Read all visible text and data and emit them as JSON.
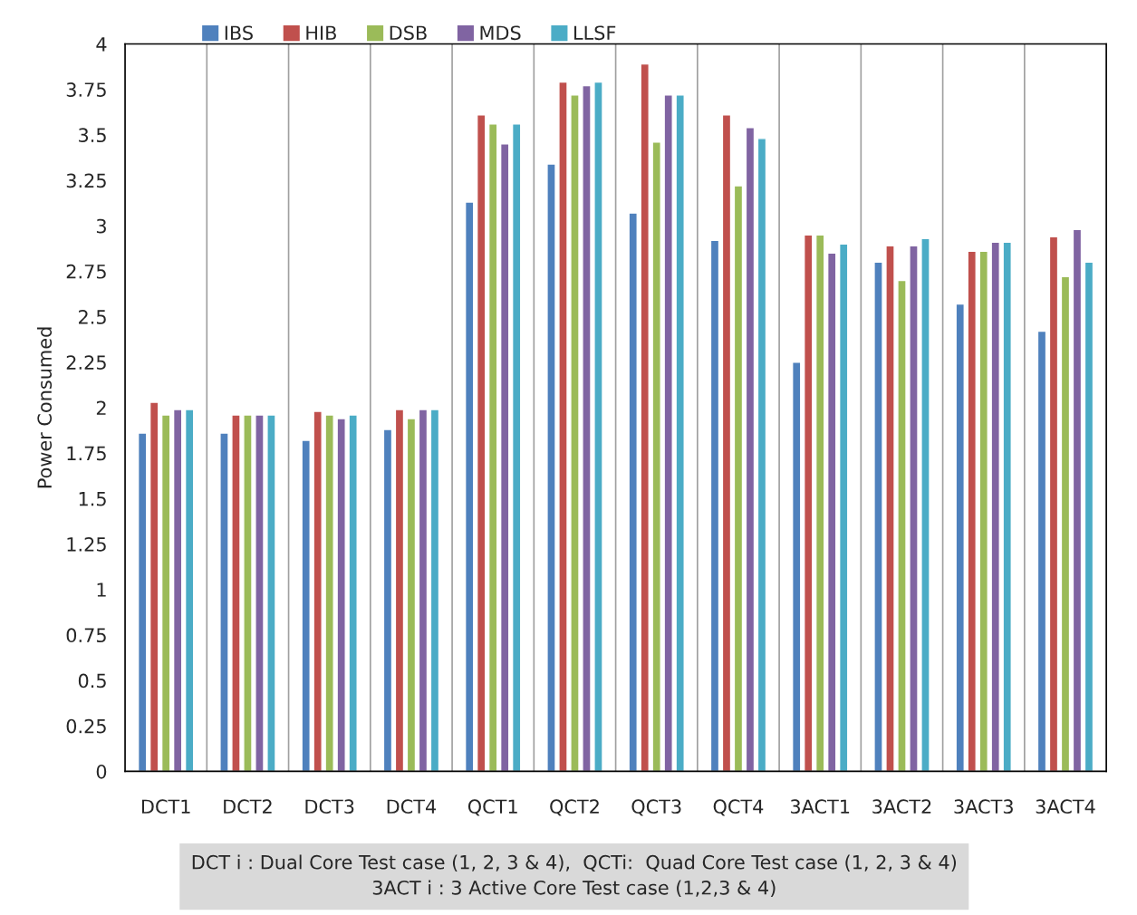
{
  "chart_data": {
    "type": "bar",
    "ylabel": "Power Consumed",
    "categories": [
      "DCT1",
      "DCT2",
      "DCT3",
      "DCT4",
      "QCT1",
      "QCT2",
      "QCT3",
      "QCT4",
      "3ACT1",
      "3ACT2",
      "3ACT3",
      "3ACT4"
    ],
    "series": [
      {
        "name": "IBS",
        "color": "#4f81bd",
        "values": [
          1.86,
          1.86,
          1.82,
          1.88,
          3.13,
          3.34,
          3.07,
          2.92,
          2.25,
          2.8,
          2.57,
          2.42
        ]
      },
      {
        "name": "HIB",
        "color": "#c0504d",
        "values": [
          2.03,
          1.96,
          1.98,
          1.99,
          3.61,
          3.79,
          3.89,
          3.61,
          2.95,
          2.89,
          2.86,
          2.94
        ]
      },
      {
        "name": "DSB",
        "color": "#9bbb59",
        "values": [
          1.96,
          1.96,
          1.96,
          1.94,
          3.56,
          3.72,
          3.46,
          3.22,
          2.95,
          2.7,
          2.86,
          2.72
        ]
      },
      {
        "name": "MDS",
        "color": "#8064a2",
        "values": [
          1.99,
          1.96,
          1.94,
          1.99,
          3.45,
          3.77,
          3.72,
          3.54,
          2.85,
          2.89,
          2.91,
          2.98
        ]
      },
      {
        "name": "LLSF",
        "color": "#4bacc6",
        "values": [
          1.99,
          1.96,
          1.96,
          1.99,
          3.56,
          3.79,
          3.72,
          3.48,
          2.9,
          2.93,
          2.91,
          2.8
        ]
      }
    ],
    "ylim": [
      0,
      4
    ],
    "yticks": [
      0,
      0.25,
      0.5,
      0.75,
      1,
      1.25,
      1.5,
      1.75,
      2,
      2.25,
      2.5,
      2.75,
      3,
      3.25,
      3.5,
      3.75,
      4
    ],
    "grid": "x",
    "legend": "top",
    "annotations": [
      "DCT i : Dual Core Test case (1, 2, 3 & 4),  QCTi:  Quad Core Test case (1, 2, 3 & 4)\n3ACT i : 3 Active Core Test case (1,2,3 & 4)"
    ]
  }
}
